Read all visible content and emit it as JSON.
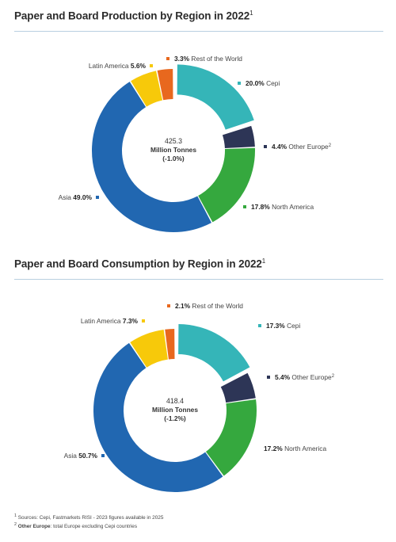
{
  "chart_data": [
    {
      "type": "pie",
      "title": "Paper and Board Production by Region in 2022",
      "title_sup": "1",
      "center_text": [
        "425.3",
        "Million Tonnes",
        "(-1.0%)"
      ],
      "slices": [
        {
          "name": "Cepi",
          "value": 20.0,
          "label": "20.0%",
          "color": "#35b5b8",
          "exploded": true
        },
        {
          "name": "Other Europe",
          "value": 4.4,
          "label": "4.4%",
          "color": "#2d3556",
          "sup": "2"
        },
        {
          "name": "North America",
          "value": 17.8,
          "label": "17.8%",
          "color": "#35a83e"
        },
        {
          "name": "Asia",
          "value": 49.0,
          "label": "49.0%",
          "color": "#2167b1"
        },
        {
          "name": "Latin America",
          "value": 5.6,
          "label": "5.6%",
          "color": "#f7c90a"
        },
        {
          "name": "Rest of the World",
          "value": 3.3,
          "label": "3.3%",
          "color": "#e8681e"
        }
      ]
    },
    {
      "type": "pie",
      "title": "Paper and Board Consumption by Region in 2022",
      "title_sup": "1",
      "center_text": [
        "418.4",
        "Million Tonnes",
        "(-1.2%)"
      ],
      "slices": [
        {
          "name": "Cepi",
          "value": 17.3,
          "label": "17.3%",
          "color": "#35b5b8",
          "exploded": true
        },
        {
          "name": "Other Europe",
          "value": 5.4,
          "label": "5.4%",
          "color": "#2d3556",
          "sup": "2"
        },
        {
          "name": "North America",
          "value": 17.2,
          "label": "17.2%",
          "color": "#35a83e"
        },
        {
          "name": "Asia",
          "value": 50.7,
          "label": "50.7%",
          "color": "#2167b1"
        },
        {
          "name": "Latin America",
          "value": 7.3,
          "label": "7.3%",
          "color": "#f7c90a"
        },
        {
          "name": "Rest of the World",
          "value": 2.1,
          "label": "2.1%",
          "color": "#e8681e"
        }
      ]
    }
  ],
  "footnotes": {
    "note1_mark": "1",
    "note1_text": "Sources: Cepi, Fastmarkets RISI - 2023 figures available in 2025",
    "note2_mark": "2",
    "note2_bold": "Other Europe",
    "note2_text": ": total Europe excluding Cepi countries"
  }
}
